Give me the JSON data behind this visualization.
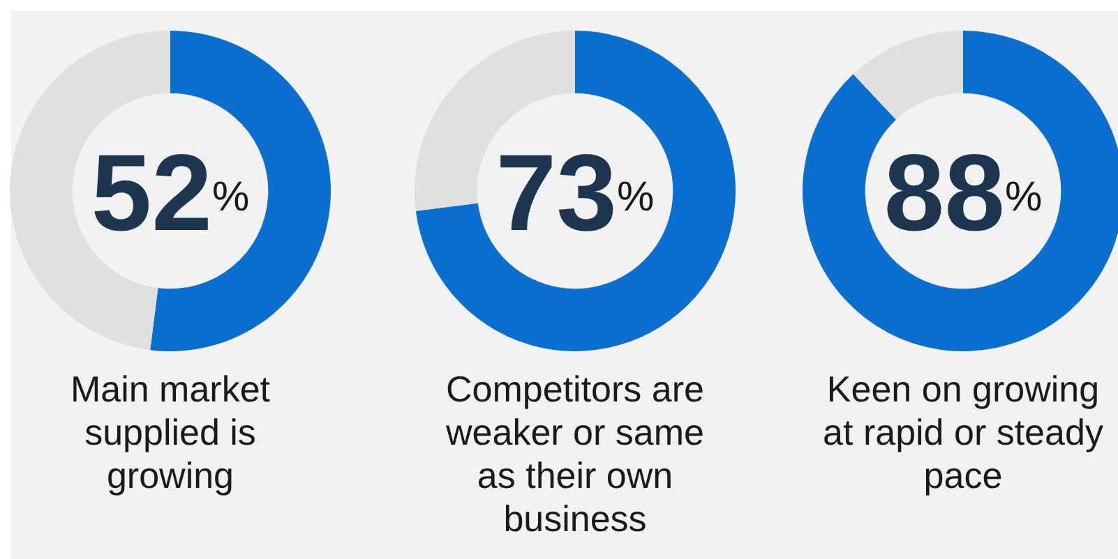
{
  "chart_data": [
    {
      "type": "donut",
      "title": "Main market supplied is growing",
      "categories": [
        null,
        null
      ],
      "values": [
        52,
        48
      ],
      "colors": [
        "#0a6fcf",
        "#e0e0e0"
      ],
      "value_labels": [
        "52%",
        null
      ],
      "legend": false
    },
    {
      "type": "donut",
      "title": "Competitors are weaker or same as their own business",
      "categories": [
        null,
        null
      ],
      "values": [
        73,
        27
      ],
      "colors": [
        "#0a6fcf",
        "#e0e0e0"
      ],
      "value_labels": [
        "73%",
        null
      ],
      "legend": false
    },
    {
      "type": "donut",
      "title": "Keen on growing at rapid or steady pace",
      "categories": [
        null,
        null
      ],
      "values": [
        88,
        12
      ],
      "colors": [
        "#0a6fcf",
        "#e0e0e0"
      ],
      "value_labels": [
        "88%",
        null
      ],
      "legend": false
    }
  ]
}
